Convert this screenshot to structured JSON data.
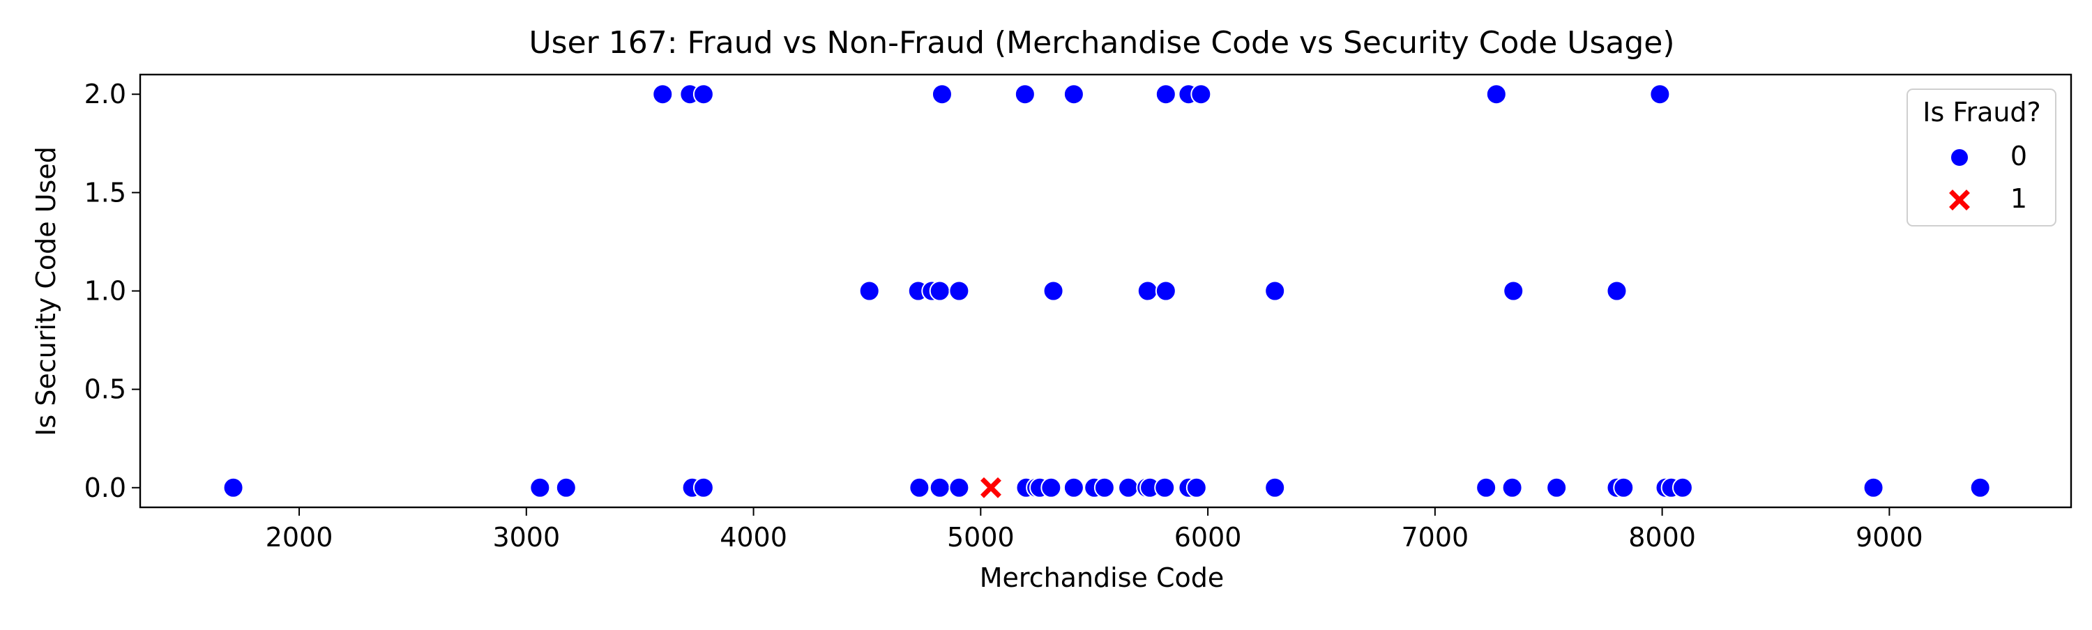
{
  "chart_data": {
    "type": "scatter",
    "title": "User 167: Fraud vs Non-Fraud (Merchandise Code vs Security Code Usage)",
    "xlabel": "Merchandise Code",
    "ylabel": "Is Security Code Used",
    "xlim": [
      1300,
      9800
    ],
    "ylim": [
      -0.1,
      2.1
    ],
    "xticks": [
      2000,
      3000,
      4000,
      5000,
      6000,
      7000,
      8000,
      9000
    ],
    "yticks": [
      0.0,
      0.5,
      1.0,
      1.5,
      2.0
    ],
    "xtick_labels": [
      "2000",
      "3000",
      "4000",
      "5000",
      "6000",
      "7000",
      "8000",
      "9000"
    ],
    "ytick_labels": [
      "0.0",
      "0.5",
      "1.0",
      "1.5",
      "2.0"
    ],
    "grid": false,
    "legend": {
      "title": "Is Fraud?",
      "placement": "top-right",
      "entries": [
        {
          "label": "0",
          "marker": "circle",
          "color": "#0000ff"
        },
        {
          "label": "1",
          "marker": "x",
          "color": "#ff0000"
        }
      ]
    },
    "series": [
      {
        "name": "0",
        "marker": "circle",
        "color": "#0000ff",
        "points": [
          [
            1710,
            0
          ],
          [
            3060,
            0
          ],
          [
            3175,
            0
          ],
          [
            3730,
            0
          ],
          [
            3780,
            0
          ],
          [
            4730,
            0
          ],
          [
            4820,
            0
          ],
          [
            4905,
            0
          ],
          [
            5200,
            0
          ],
          [
            5245,
            0
          ],
          [
            5260,
            0
          ],
          [
            5310,
            0
          ],
          [
            5410,
            0
          ],
          [
            5500,
            0
          ],
          [
            5545,
            0
          ],
          [
            5650,
            0
          ],
          [
            5730,
            0
          ],
          [
            5745,
            0
          ],
          [
            5810,
            0
          ],
          [
            5915,
            0
          ],
          [
            5950,
            0
          ],
          [
            6295,
            0
          ],
          [
            7225,
            0
          ],
          [
            7340,
            0
          ],
          [
            7535,
            0
          ],
          [
            7800,
            0
          ],
          [
            7830,
            0
          ],
          [
            8015,
            0
          ],
          [
            8040,
            0
          ],
          [
            8090,
            0
          ],
          [
            8930,
            0
          ],
          [
            9400,
            0
          ],
          [
            4510,
            1
          ],
          [
            4725,
            1
          ],
          [
            4785,
            1
          ],
          [
            4820,
            1
          ],
          [
            4905,
            1
          ],
          [
            5320,
            1
          ],
          [
            5735,
            1
          ],
          [
            5815,
            1
          ],
          [
            6295,
            1
          ],
          [
            7345,
            1
          ],
          [
            7800,
            1
          ],
          [
            3600,
            2
          ],
          [
            3720,
            2
          ],
          [
            3780,
            2
          ],
          [
            4830,
            2
          ],
          [
            5195,
            2
          ],
          [
            5410,
            2
          ],
          [
            5815,
            2
          ],
          [
            5915,
            2
          ],
          [
            5970,
            2
          ],
          [
            7270,
            2
          ],
          [
            7990,
            2
          ]
        ]
      },
      {
        "name": "1",
        "marker": "x",
        "color": "#ff0000",
        "points": [
          [
            5045,
            0
          ]
        ]
      }
    ]
  }
}
